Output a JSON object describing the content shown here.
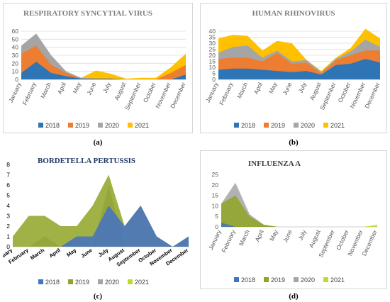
{
  "chart_data": [
    {
      "type": "area",
      "panel_label": "(a)",
      "title": "RESPIRATORY SYNCYTIAL VIRUS",
      "categories": [
        "January",
        "February",
        "March",
        "April",
        "May",
        "June",
        "July",
        "August",
        "September",
        "October",
        "November",
        "December"
      ],
      "ylim": [
        0,
        60
      ],
      "yticks": [
        0,
        10,
        20,
        30,
        40,
        50,
        60
      ],
      "legend_position": "bottom",
      "series": [
        {
          "name": "2018",
          "color": "#2e75b6",
          "values": [
            8,
            22,
            8,
            4,
            1,
            1,
            1,
            0,
            0,
            0,
            0,
            6
          ]
        },
        {
          "name": "2019",
          "color": "#ed7d31",
          "values": [
            32,
            42,
            18,
            8,
            1,
            1,
            1,
            0,
            0,
            0,
            8,
            18
          ]
        },
        {
          "name": "2020",
          "color": "#a5a5a5",
          "values": [
            42,
            57,
            30,
            10,
            2,
            1,
            1,
            0,
            0,
            0,
            1,
            1
          ]
        },
        {
          "name": "2021",
          "color": "#ffc000",
          "values": [
            0,
            1,
            1,
            1,
            2,
            11,
            7,
            1,
            2,
            2,
            15,
            32
          ]
        }
      ]
    },
    {
      "type": "area",
      "panel_label": "(b)",
      "title": "HUMAN RHINOVIRUS",
      "categories": [
        "January",
        "February",
        "March",
        "April",
        "May",
        "June",
        "July",
        "August",
        "September",
        "October",
        "November",
        "December"
      ],
      "ylim": [
        0,
        40
      ],
      "yticks": [
        0,
        5,
        10,
        15,
        20,
        25,
        30,
        35,
        40
      ],
      "legend_position": "bottom",
      "series": [
        {
          "name": "2018",
          "color": "#2e75b6",
          "values": [
            8,
            9,
            9,
            8,
            7,
            6,
            7,
            4,
            12,
            13,
            17,
            14
          ]
        },
        {
          "name": "2019",
          "color": "#ed7d31",
          "values": [
            17,
            18,
            18,
            15,
            22,
            13,
            14,
            5,
            16,
            20,
            24,
            24
          ]
        },
        {
          "name": "2020",
          "color": "#a5a5a5",
          "values": [
            22,
            27,
            28,
            18,
            24,
            15,
            16,
            6,
            17,
            23,
            33,
            27
          ]
        },
        {
          "name": "2021",
          "color": "#ffc000",
          "values": [
            34,
            37,
            36,
            24,
            32,
            30,
            16,
            7,
            18,
            26,
            42,
            34
          ]
        }
      ]
    },
    {
      "type": "area",
      "panel_label": "(c)",
      "title": "BORDETELLA PERTUSSIS",
      "categories": [
        "January",
        "February",
        "March",
        "April",
        "May",
        "June",
        "July",
        "August",
        "September",
        "October",
        "November",
        "December"
      ],
      "ylim": [
        0,
        8
      ],
      "yticks": [
        0,
        1,
        2,
        3,
        4,
        5,
        6,
        7,
        8
      ],
      "legend_position": "bottom",
      "series": [
        {
          "name": "2018",
          "color": "#4472c4",
          "values": [
            0,
            0,
            0,
            0,
            1,
            1,
            4,
            2,
            4,
            1,
            0,
            1
          ]
        },
        {
          "name": "2019",
          "color": "#8fa324",
          "values": [
            1,
            3,
            3,
            2,
            2,
            4,
            7,
            2,
            4,
            1,
            0,
            1
          ]
        },
        {
          "name": "2020",
          "color": "#a5a5a5",
          "values": [
            0,
            0,
            1,
            0,
            1,
            0,
            6,
            0,
            0,
            0,
            0,
            0
          ]
        },
        {
          "name": "2021",
          "color": "#c0d92e",
          "values": [
            0,
            0,
            0,
            0,
            0,
            0,
            1,
            0,
            0,
            0,
            0,
            0
          ]
        }
      ]
    },
    {
      "type": "area",
      "panel_label": "(d)",
      "title": "INFLUENZA A",
      "categories": [
        "January",
        "February",
        "March",
        "April",
        "May",
        "June",
        "July",
        "August",
        "September",
        "October",
        "November",
        "December"
      ],
      "ylim": [
        0,
        25
      ],
      "yticks": [
        0,
        5,
        10,
        15,
        20,
        25
      ],
      "legend_position": "bottom",
      "series": [
        {
          "name": "2018",
          "color": "#4472c4",
          "values": [
            2,
            0,
            0,
            0,
            0,
            0,
            0,
            0,
            0,
            0,
            0,
            0
          ]
        },
        {
          "name": "2019",
          "color": "#8fa324",
          "values": [
            11,
            15,
            5,
            1,
            0,
            0,
            0,
            0,
            0,
            0,
            0,
            0
          ]
        },
        {
          "name": "2020",
          "color": "#a5a5a5",
          "values": [
            11,
            21,
            6,
            1,
            0,
            0,
            0,
            0,
            0,
            0,
            0,
            0
          ]
        },
        {
          "name": "2021",
          "color": "#c0d92e",
          "values": [
            0,
            0,
            0,
            0,
            0,
            0,
            0,
            0,
            0,
            0,
            0,
            1
          ]
        }
      ]
    }
  ]
}
